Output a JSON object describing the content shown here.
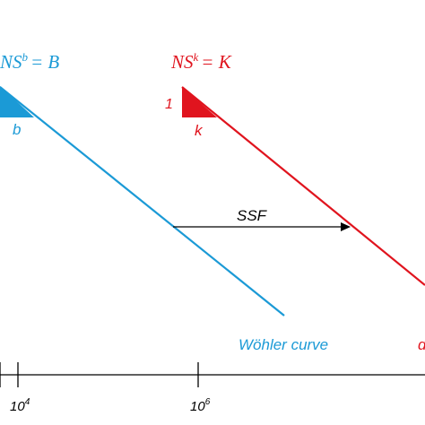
{
  "colors": {
    "blue": "#1b9ad6",
    "red": "#e0141e",
    "axis": "#000000",
    "arrow": "#000000"
  },
  "equations": {
    "blue": {
      "lhs": "NS",
      "exponent": "b",
      "rhs": "= B"
    },
    "red": {
      "lhs": "NS",
      "exponent": "k",
      "rhs": "= K"
    }
  },
  "slope_triangles": {
    "blue": {
      "run_label": "b"
    },
    "red": {
      "rise_label": "1",
      "run_label": "k"
    }
  },
  "arrow": {
    "label": "SSF"
  },
  "curve_labels": {
    "blue": "Wöhler curve",
    "red": "d"
  },
  "axis": {
    "ticks": [
      {
        "base": "10",
        "exp": "4"
      },
      {
        "base": "10",
        "exp": "6"
      }
    ]
  }
}
